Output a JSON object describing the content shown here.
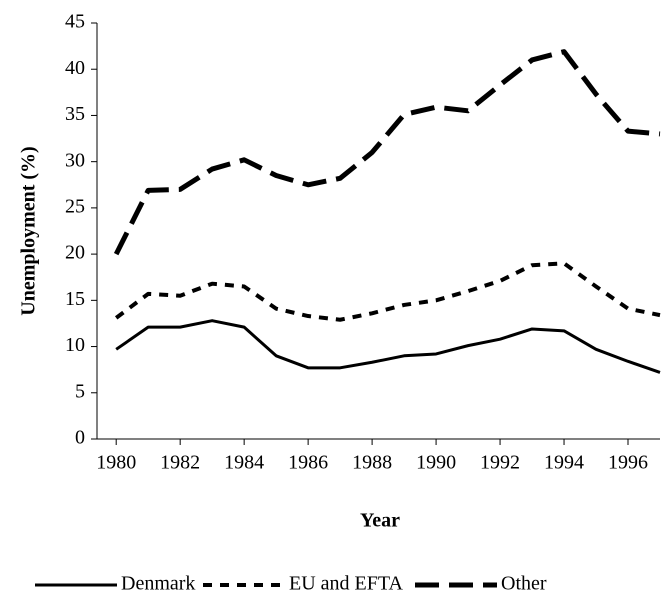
{
  "chart_data": {
    "type": "line",
    "x_label": "Year",
    "y_label": "Unemployment (%)",
    "x": [
      1980,
      1981,
      1982,
      1983,
      1984,
      1985,
      1986,
      1987,
      1988,
      1989,
      1990,
      1991,
      1992,
      1993,
      1994,
      1995,
      1996,
      1997
    ],
    "series": [
      {
        "name": "Denmark",
        "color": "#000000",
        "values": [
          9.7,
          12.1,
          12.1,
          12.8,
          12.1,
          9.0,
          7.7,
          7.7,
          8.3,
          9.0,
          9.2,
          10.1,
          10.8,
          11.9,
          11.7,
          9.7,
          8.4,
          7.2
        ]
      },
      {
        "name": "EU and EFTA",
        "color": "#000000",
        "values": [
          13.1,
          15.7,
          15.5,
          16.8,
          16.5,
          14.1,
          13.3,
          12.9,
          13.6,
          14.5,
          15.0,
          16.0,
          17.1,
          18.8,
          19.0,
          16.5,
          14.1,
          13.4
        ]
      },
      {
        "name": "Other",
        "color": "#000000",
        "values": [
          20.0,
          26.9,
          27.0,
          29.2,
          30.2,
          28.5,
          27.5,
          28.2,
          31.0,
          35.1,
          35.9,
          35.5,
          38.3,
          41.0,
          41.9,
          37.3,
          33.3,
          33.0
        ]
      }
    ],
    "xlim": [
      1979.4,
      1997
    ],
    "xticks": [
      1980,
      1982,
      1984,
      1986,
      1988,
      1990,
      1992,
      1994,
      1996
    ],
    "ylim": [
      0,
      45
    ],
    "yticks": [
      0,
      5,
      10,
      15,
      20,
      25,
      30,
      35,
      40,
      45
    ],
    "grid": false,
    "legend": "bottom"
  }
}
